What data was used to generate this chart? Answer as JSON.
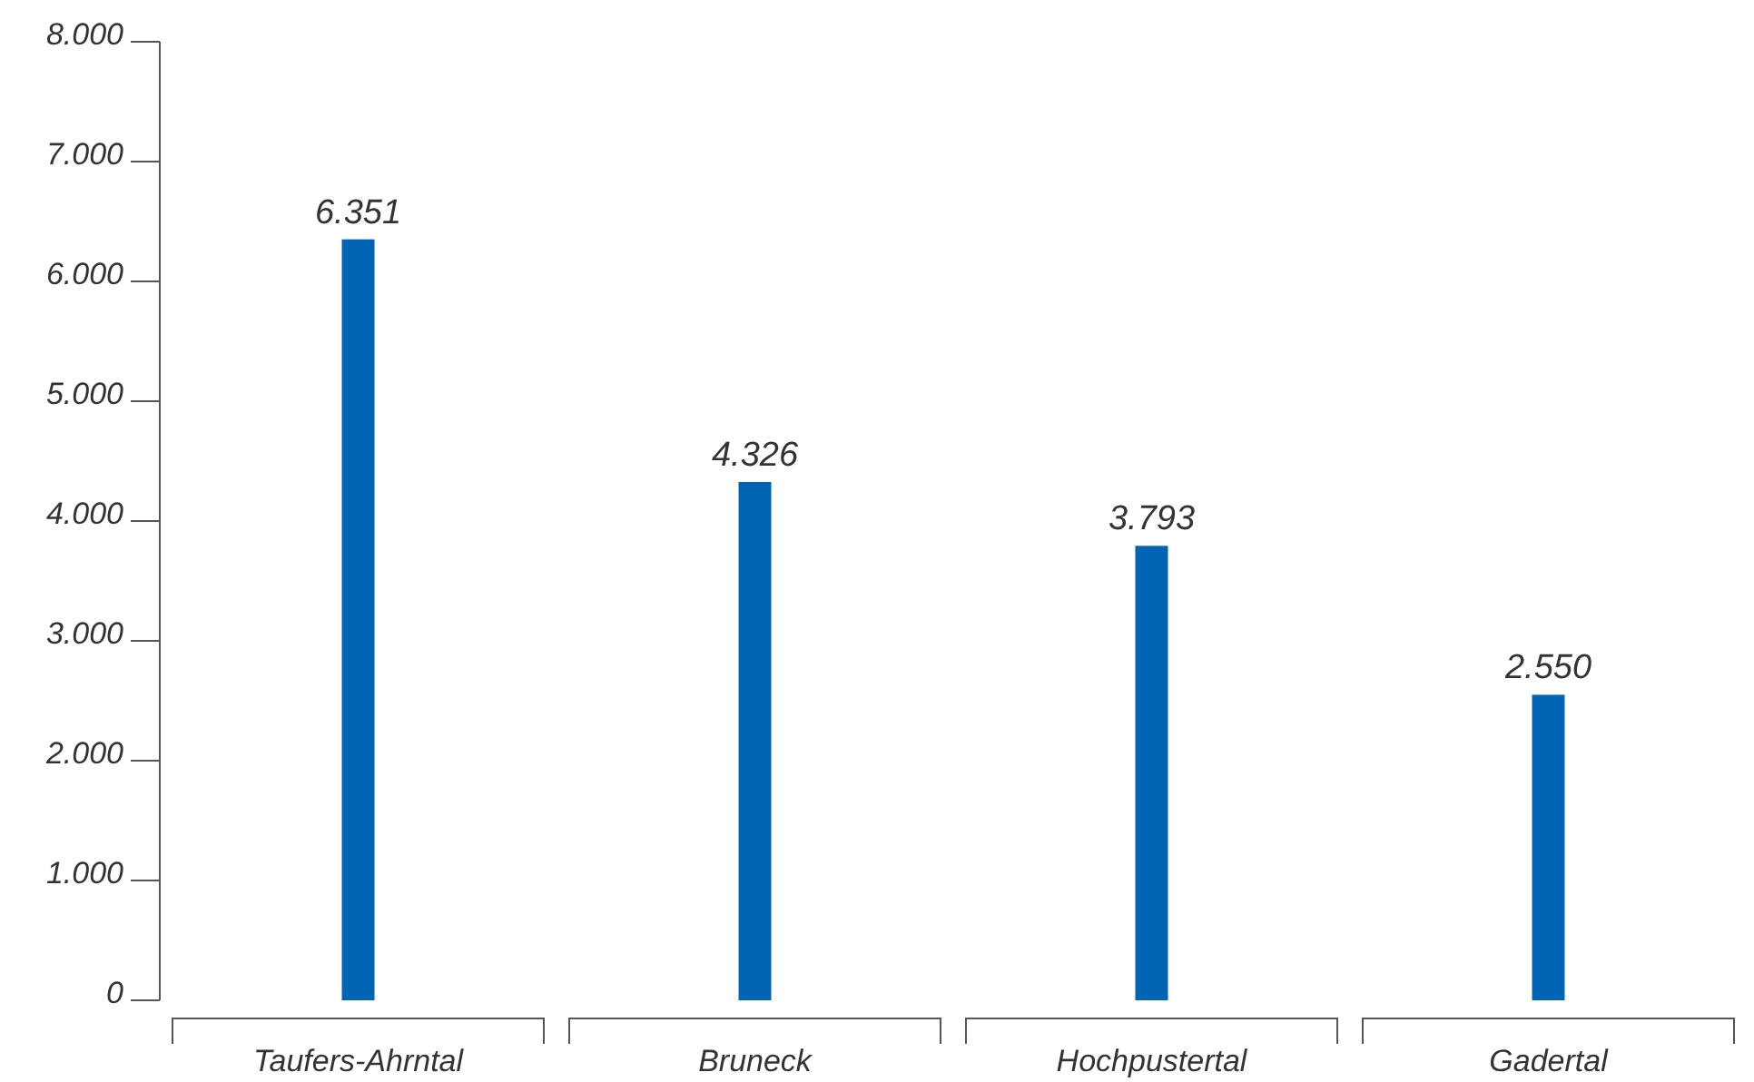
{
  "chart_data": {
    "type": "bar",
    "categories": [
      "Taufers-Ahrntal",
      "Bruneck",
      "Hochpustertal",
      "Gadertal"
    ],
    "values": [
      6351,
      4326,
      3793,
      2550
    ],
    "color": "#0064b4",
    "value_labels": [
      "6.351",
      "4.326",
      "3.793",
      "2.550"
    ],
    "ylim": [
      0,
      8000
    ],
    "yticks": [
      {
        "value": 0,
        "label": "0"
      },
      {
        "value": 1000,
        "label": "1.000"
      },
      {
        "value": 2000,
        "label": "2.000"
      },
      {
        "value": 3000,
        "label": "3.000"
      },
      {
        "value": 4000,
        "label": "4.000"
      },
      {
        "value": 5000,
        "label": "5.000"
      },
      {
        "value": 6000,
        "label": "6.000"
      },
      {
        "value": 7000,
        "label": "7.000"
      },
      {
        "value": 8000,
        "label": "8.000"
      }
    ],
    "grid": false
  }
}
